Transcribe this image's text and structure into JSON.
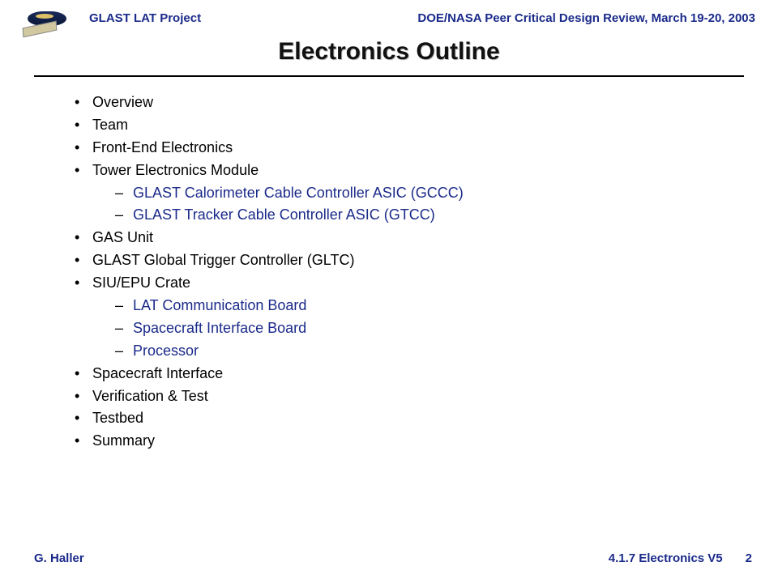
{
  "header": {
    "left": "GLAST LAT Project",
    "right": "DOE/NASA Peer Critical Design Review, March 19-20, 2003"
  },
  "title": "Electronics  Outline",
  "colors": {
    "header_text": "#1a2a8a",
    "body_text": "#000000",
    "sub_text": "#1a2a8a",
    "background": "#ffffff"
  },
  "typography": {
    "header_fontsize": 15,
    "title_fontsize": 30,
    "bullet_fontsize": 18,
    "footer_fontsize": 15
  },
  "outline": [
    {
      "text": "Overview"
    },
    {
      "text": "Team"
    },
    {
      "text": "Front-End Electronics"
    },
    {
      "text": "Tower Electronics Module",
      "children": [
        {
          "text": "GLAST Calorimeter Cable Controller ASIC (GCCC)"
        },
        {
          "text": "GLAST Tracker Cable Controller ASIC (GTCC)"
        }
      ]
    },
    {
      "text": "GAS Unit"
    },
    {
      "text": "GLAST Global Trigger Controller (GLTC)"
    },
    {
      "text": "SIU/EPU Crate",
      "children": [
        {
          "text": "LAT Communication Board"
        },
        {
          "text": "Spacecraft Interface Board"
        },
        {
          "text": "Processor"
        }
      ]
    },
    {
      "text": "Spacecraft Interface"
    },
    {
      "text": "Verification & Test"
    },
    {
      "text": "Testbed"
    },
    {
      "text": "Summary"
    }
  ],
  "footer": {
    "left": "G. Haller",
    "right_section": "4.1.7 Electronics  V5",
    "page": "2"
  }
}
